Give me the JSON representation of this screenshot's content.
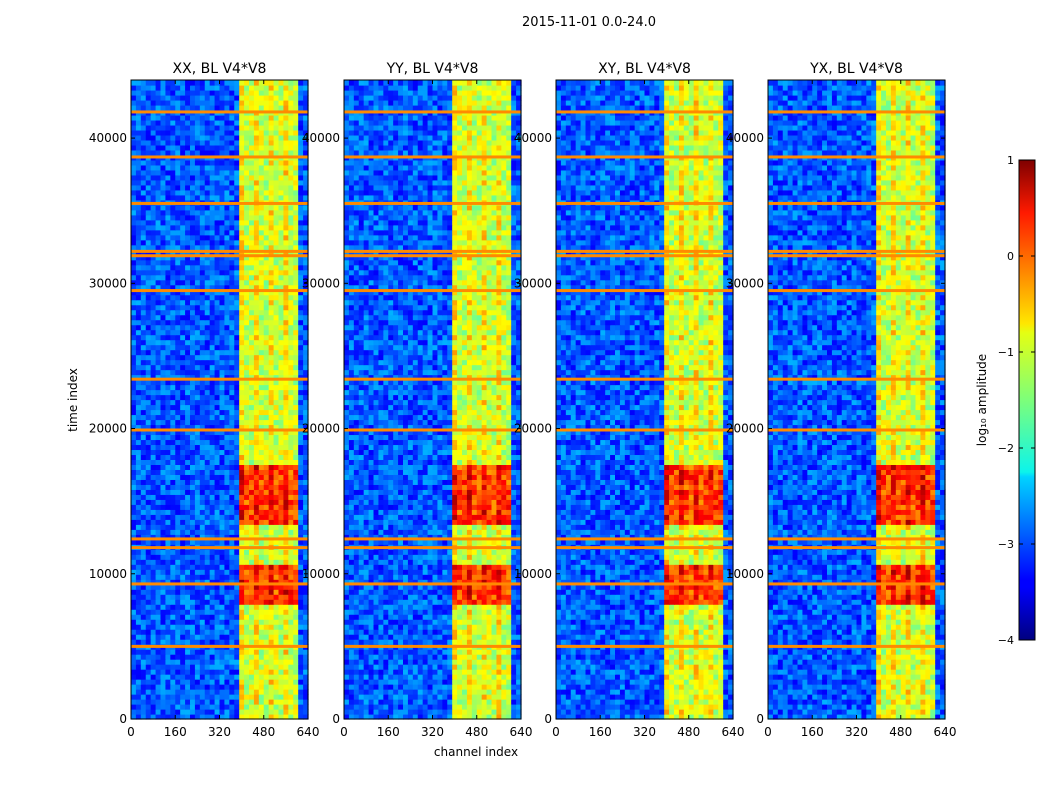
{
  "figure": {
    "suptitle": "2015-11-01 0.0-24.0",
    "ylabel": "time index",
    "xlabel": "channel index"
  },
  "chart_data": {
    "type": "heatmap",
    "title": "2015-11-01 0.0-24.0",
    "xlabel": "channel index",
    "ylabel": "time index",
    "xlim": [
      0,
      640
    ],
    "ylim": [
      0,
      44000
    ],
    "x_ticks": [
      "0",
      "160",
      "320",
      "480",
      "640"
    ],
    "x_tick_values": [
      0,
      160,
      320,
      480,
      640
    ],
    "y_ticks": [
      "0",
      "10000",
      "20000",
      "30000",
      "40000"
    ],
    "y_tick_values": [
      0,
      10000,
      20000,
      30000,
      40000
    ],
    "colormap": "jet",
    "colorbar": {
      "label": "log₁₀ amplitude",
      "range": [
        -4,
        1
      ],
      "ticks": [
        "1",
        "0",
        "−1",
        "−2",
        "−3",
        "−4"
      ],
      "tick_values": [
        1,
        0,
        -1,
        -2,
        -3,
        -4
      ]
    },
    "panels": [
      {
        "title": "XX, BL V4*V8"
      },
      {
        "title": "YY, BL V4*V8"
      },
      {
        "title": "XY, BL V4*V8"
      },
      {
        "title": "YX, BL V4*V8"
      }
    ],
    "features": {
      "rfi_channel_range": [
        400,
        600
      ],
      "strong_rfi_time_ranges": [
        [
          8000,
          10500
        ],
        [
          13500,
          17500
        ]
      ],
      "flagged_time_rows": [
        5000,
        9300,
        11800,
        12400,
        19900,
        23400,
        29500,
        31900,
        32200,
        35500,
        38700,
        41800
      ]
    }
  }
}
